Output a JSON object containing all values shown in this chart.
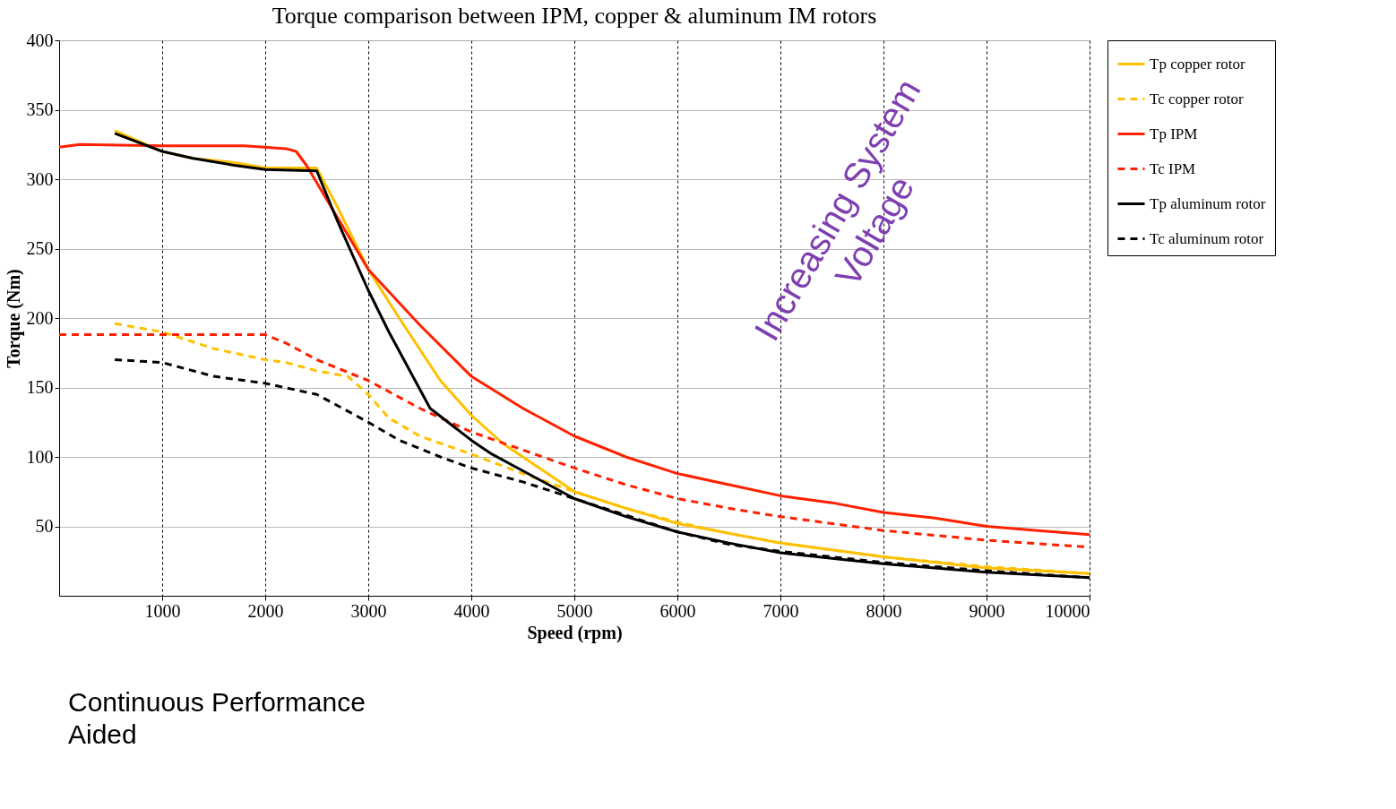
{
  "chart_data": {
    "type": "line",
    "title": "Torque comparison between IPM, copper & aluminum IM rotors",
    "xlabel": "Speed (rpm)",
    "ylabel": "Torque (Nm)",
    "xlim": [
      0,
      10000
    ],
    "xticks": [
      1000,
      2000,
      3000,
      4000,
      5000,
      6000,
      7000,
      8000,
      9000,
      10000
    ],
    "ylim": [
      0,
      400
    ],
    "yticks": [
      50,
      100,
      150,
      200,
      250,
      300,
      350,
      400
    ],
    "grid": true,
    "legend": "right",
    "marker": "none",
    "annotations": [
      "Increasing System Voltage",
      "Continuous Performance Aided"
    ],
    "series": [
      {
        "name": "Tp copper rotor",
        "color": "#ffc000",
        "line_style": "solid",
        "x": [
          540,
          1000,
          1300,
          1700,
          2000,
          2500,
          2700,
          3000,
          3300,
          3700,
          4000,
          4300,
          4700,
          5000,
          5500,
          6000,
          6500,
          7000,
          7500,
          8000,
          8500,
          9000,
          9500,
          10000
        ],
        "values": [
          335,
          320,
          315,
          312,
          308,
          308,
          280,
          235,
          200,
          155,
          130,
          110,
          90,
          75,
          63,
          52,
          45,
          38,
          33,
          28,
          24,
          20,
          18,
          16
        ]
      },
      {
        "name": "Tc copper rotor",
        "color": "#ffc000",
        "line_style": "dashed",
        "x": [
          540,
          1000,
          1500,
          2000,
          2200,
          2500,
          2800,
          3000,
          3200,
          3500,
          4000,
          4500,
          5000,
          5500,
          6000,
          6500,
          7000,
          8000,
          9000,
          10000
        ],
        "values": [
          196,
          190,
          178,
          170,
          168,
          162,
          158,
          145,
          128,
          115,
          102,
          88,
          75,
          63,
          53,
          45,
          38,
          28,
          21,
          16
        ]
      },
      {
        "name": "Tp IPM",
        "color": "#ff2000",
        "line_style": "solid",
        "x": [
          0,
          200,
          1000,
          1800,
          2200,
          2300,
          2400,
          2600,
          3000,
          3500,
          4000,
          4500,
          5000,
          5500,
          6000,
          6500,
          7000,
          7500,
          8000,
          8500,
          9000,
          9500,
          10000
        ],
        "values": [
          323,
          325,
          324,
          324,
          322,
          320,
          310,
          285,
          235,
          195,
          158,
          135,
          115,
          100,
          88,
          80,
          72,
          67,
          60,
          56,
          50,
          47,
          44
        ]
      },
      {
        "name": "Tc IPM",
        "color": "#ff2000",
        "line_style": "dashed",
        "x": [
          0,
          2000,
          2200,
          2500,
          3000,
          3500,
          4000,
          4500,
          5000,
          5500,
          6000,
          6500,
          7000,
          8000,
          9000,
          10000
        ],
        "values": [
          188,
          188,
          182,
          170,
          155,
          135,
          118,
          105,
          92,
          80,
          70,
          63,
          57,
          47,
          40,
          35
        ]
      },
      {
        "name": "Tp aluminum rotor",
        "color": "#000000",
        "line_style": "solid",
        "x": [
          540,
          1000,
          1300,
          1700,
          2000,
          2500,
          2700,
          3000,
          3200,
          3600,
          4000,
          4200,
          4500,
          5000,
          5500,
          6000,
          6500,
          7000,
          7500,
          8000,
          8500,
          9000,
          9500,
          10000
        ],
        "values": [
          333,
          320,
          315,
          310,
          307,
          306,
          270,
          220,
          190,
          135,
          112,
          102,
          90,
          70,
          57,
          46,
          38,
          31,
          27,
          23,
          20,
          17,
          15,
          13
        ]
      },
      {
        "name": "Tc aluminum rotor",
        "color": "#000000",
        "line_style": "dashed",
        "x": [
          540,
          1000,
          1500,
          2000,
          2500,
          3000,
          3300,
          3700,
          4000,
          4500,
          5000,
          5500,
          6000,
          6500,
          7000,
          8000,
          9000,
          10000
        ],
        "values": [
          170,
          168,
          158,
          153,
          145,
          125,
          112,
          100,
          92,
          82,
          70,
          58,
          46,
          37,
          32,
          24,
          18,
          13
        ]
      }
    ]
  }
}
